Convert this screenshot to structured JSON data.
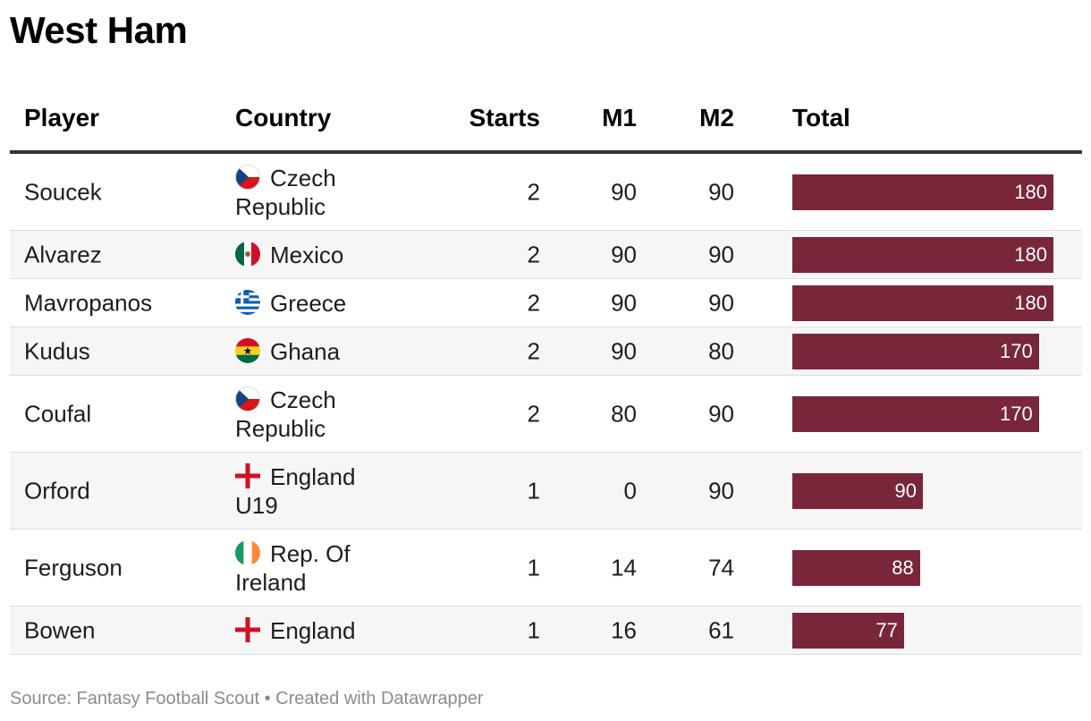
{
  "title": "West Ham",
  "source": "Source: Fantasy Football Scout • Created with Datawrapper",
  "colors": {
    "bar": "#7a263a",
    "header_rule": "#333333",
    "alt_row": "#f6f6f6"
  },
  "columns": [
    "Player",
    "Country",
    "Starts",
    "M1",
    "M2",
    "Total"
  ],
  "chart_data": {
    "type": "table",
    "title": "West Ham",
    "columns": [
      "Player",
      "Country",
      "Starts",
      "M1",
      "M2",
      "Total"
    ],
    "bar_column": "Total",
    "bar_max": 180,
    "rows": [
      {
        "player": "Soucek",
        "flag": "czech-flag-icon",
        "country_line1": "Czech",
        "country_line2": "Republic",
        "starts": "2",
        "m1": "90",
        "m2": "90",
        "total": 180
      },
      {
        "player": "Alvarez",
        "flag": "mexico-flag-icon",
        "country_line1": "Mexico",
        "country_line2": "",
        "starts": "2",
        "m1": "90",
        "m2": "90",
        "total": 180
      },
      {
        "player": "Mavropanos",
        "flag": "greece-flag-icon",
        "country_line1": "Greece",
        "country_line2": "",
        "starts": "2",
        "m1": "90",
        "m2": "90",
        "total": 180
      },
      {
        "player": "Kudus",
        "flag": "ghana-flag-icon",
        "country_line1": "Ghana",
        "country_line2": "",
        "starts": "2",
        "m1": "90",
        "m2": "80",
        "total": 170
      },
      {
        "player": "Coufal",
        "flag": "czech-flag-icon",
        "country_line1": "Czech",
        "country_line2": "Republic",
        "starts": "2",
        "m1": "80",
        "m2": "90",
        "total": 170
      },
      {
        "player": "Orford",
        "flag": "england-flag-icon",
        "country_line1": "England",
        "country_line2": "U19",
        "starts": "1",
        "m1": "0",
        "m2": "90",
        "total": 90
      },
      {
        "player": "Ferguson",
        "flag": "ireland-flag-icon",
        "country_line1": "Rep. Of",
        "country_line2": "Ireland",
        "starts": "1",
        "m1": "14",
        "m2": "74",
        "total": 88
      },
      {
        "player": "Bowen",
        "flag": "england-flag-icon",
        "country_line1": "England",
        "country_line2": "",
        "starts": "1",
        "m1": "16",
        "m2": "61",
        "total": 77
      }
    ]
  }
}
